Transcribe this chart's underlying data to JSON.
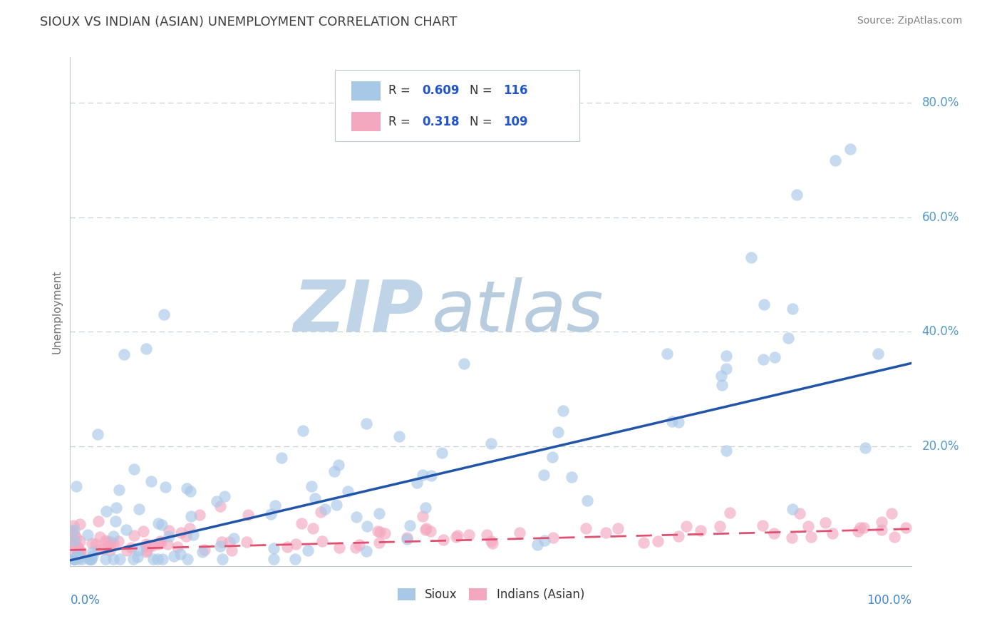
{
  "title": "SIOUX VS INDIAN (ASIAN) UNEMPLOYMENT CORRELATION CHART",
  "source": "Source: ZipAtlas.com",
  "ylabel": "Unemployment",
  "sioux_R": 0.609,
  "sioux_N": 116,
  "indian_R": 0.318,
  "indian_N": 109,
  "sioux_color": "#a8c8e8",
  "indian_color": "#f4a8c0",
  "sioux_line_color": "#2255aa",
  "indian_line_color": "#e05070",
  "background_color": "#ffffff",
  "watermark_zip": "ZIP",
  "watermark_atlas": "atlas",
  "watermark_color_zip": "#c0d4e8",
  "watermark_color_atlas": "#b8cce0",
  "grid_color": "#c8d0d8",
  "title_color": "#404040",
  "legend_text_color": "#2255cc",
  "legend_label_color": "#333333",
  "axis_label_color": "#4488cc",
  "ytick_color": "#5599cc",
  "xlim": [
    0.0,
    1.0
  ],
  "ylim": [
    -0.01,
    0.88
  ],
  "sioux_line_x0": 0.0,
  "sioux_line_y0": 0.0,
  "sioux_line_x1": 1.0,
  "sioux_line_y1": 0.345,
  "indian_line_x0": 0.0,
  "indian_line_y0": 0.018,
  "indian_line_x1": 1.0,
  "indian_line_y1": 0.055
}
